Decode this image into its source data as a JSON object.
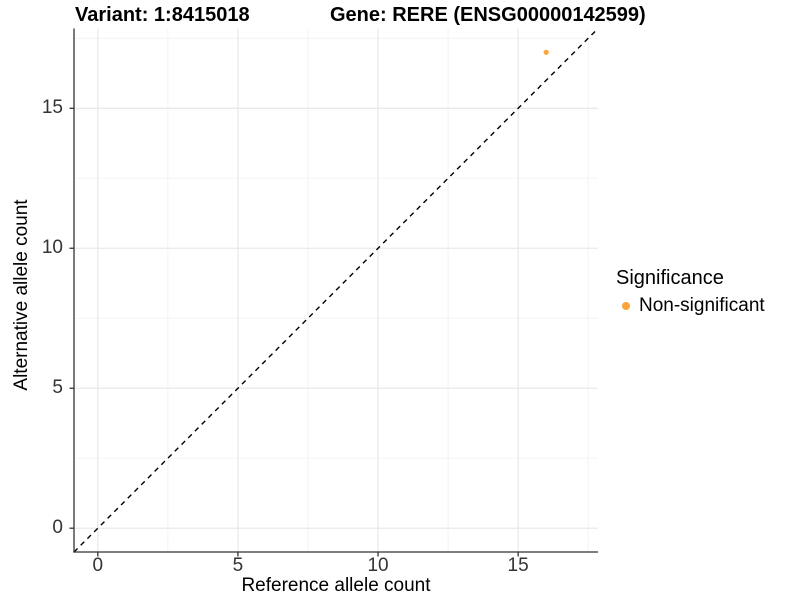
{
  "header": {
    "variant_title": "Variant: 1:8415018",
    "gene_title": "Gene: RERE (ENSG00000142599)"
  },
  "chart_data": {
    "type": "scatter",
    "xlabel": "Reference allele count",
    "ylabel": "Alternative allele count",
    "xlim": [
      -0.85,
      17.85
    ],
    "ylim": [
      -0.85,
      17.85
    ],
    "x_ticks": [
      0,
      5,
      10,
      15
    ],
    "y_ticks": [
      0,
      5,
      10,
      15
    ],
    "x_minor_ticks": [
      2.5,
      7.5,
      12.5,
      17.5
    ],
    "y_minor_ticks": [
      2.5,
      7.5,
      12.5,
      17.5
    ],
    "grid": "major and minor gridlines on white background",
    "series": [
      {
        "name": "Non-significant",
        "color": "#FAA43A",
        "points": [
          {
            "x": 16,
            "y": 17
          }
        ]
      }
    ],
    "reference_line": {
      "type": "identity y=x",
      "style": "dashed",
      "color": "#000000"
    },
    "legend": {
      "title": "Significance",
      "position": "right",
      "items": [
        {
          "label": "Non-significant",
          "color": "#FAA43A"
        }
      ]
    }
  },
  "colors": {
    "background": "#FFFFFF",
    "grid_major": "#E6E6E6",
    "grid_minor": "#F0F0F0",
    "axis_line": "#333333",
    "tick_label": "#333333",
    "point": "#FAA43A"
  }
}
